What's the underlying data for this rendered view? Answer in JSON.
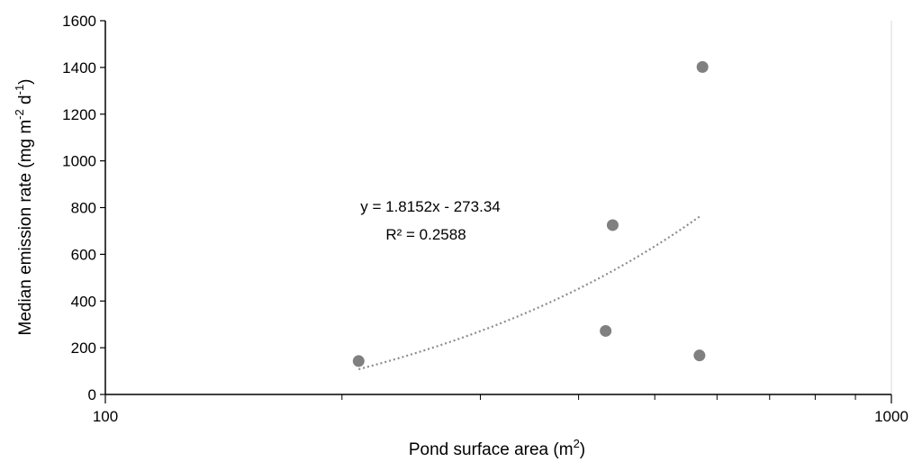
{
  "chart_data": {
    "type": "scatter",
    "xscale": "log",
    "xlabel": "Pond surface area (m",
    "xlabel_sup": "2",
    "xlabel_end": ")",
    "ylabel": "Median emission rate (mg m",
    "ylabel_sup1": "-2",
    "ylabel_mid": " d",
    "ylabel_sup2": "-1",
    "ylabel_end": ")",
    "xlim": [
      100,
      1000
    ],
    "ylim": [
      0,
      1600
    ],
    "x_ticks": [
      100,
      1000
    ],
    "x_tick_labels": [
      "100",
      "1000"
    ],
    "y_ticks": [
      0,
      200,
      400,
      600,
      800,
      1000,
      1200,
      1400,
      1600
    ],
    "y_tick_labels": [
      "0",
      "200",
      "400",
      "600",
      "800",
      "1000",
      "1200",
      "1400",
      "1600"
    ],
    "grid": false,
    "points": [
      {
        "x": 210,
        "y": 143
      },
      {
        "x": 433,
        "y": 272
      },
      {
        "x": 442,
        "y": 725
      },
      {
        "x": 570,
        "y": 167
      },
      {
        "x": 575,
        "y": 1402
      }
    ],
    "trendline": {
      "equation": "y = 1.8152x - 273.34",
      "r2_label": "R² = 0.2588",
      "slope": 1.8152,
      "intercept": -273.34,
      "x_range": [
        210,
        570
      ]
    },
    "marker_color": "#808080",
    "trend_color": "#8c8c8c",
    "axis_color": "#000000",
    "right_border_color": "#d9d9d9"
  }
}
